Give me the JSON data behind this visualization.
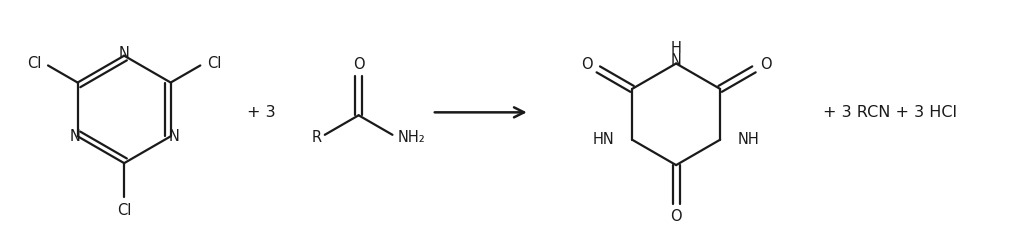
{
  "background_color": "#ffffff",
  "line_color": "#1a1a1a",
  "line_width": 1.6,
  "font_size": 10.5,
  "fig_width": 10.24,
  "fig_height": 2.25,
  "dpi": 100,
  "xlim": [
    0,
    1024
  ],
  "ylim": [
    0,
    225
  ]
}
